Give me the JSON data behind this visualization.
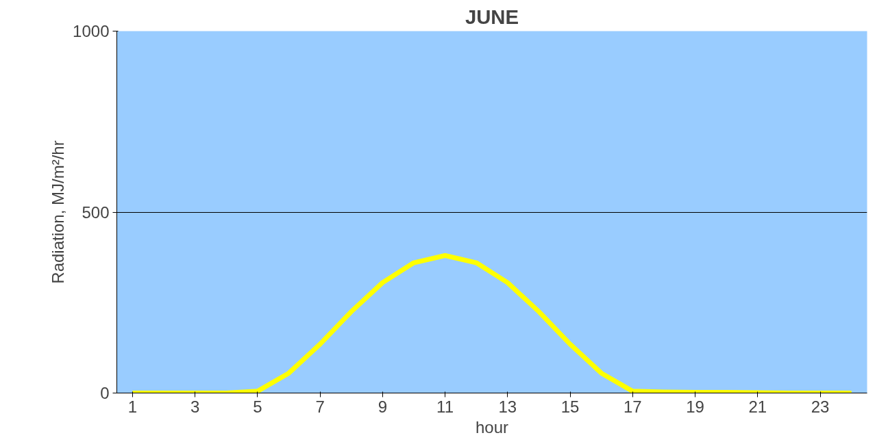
{
  "chart_data": {
    "type": "line",
    "title": "JUNE",
    "xlabel": "hour",
    "ylabel": "Radiation, MJ/m²/hr",
    "x": [
      1,
      2,
      3,
      4,
      5,
      6,
      7,
      8,
      9,
      10,
      11,
      12,
      13,
      14,
      15,
      16,
      17,
      18,
      19,
      20,
      21,
      22,
      23,
      24
    ],
    "series": [
      {
        "color": "#ffff00",
        "values": [
          0,
          0,
          0,
          0,
          5,
          55,
          135,
          225,
          305,
          360,
          380,
          360,
          305,
          225,
          135,
          55,
          5,
          3,
          2,
          2,
          1,
          0,
          0,
          0
        ]
      }
    ],
    "xlim": [
      0.5,
      24.5
    ],
    "xticks": [
      1,
      3,
      5,
      7,
      9,
      11,
      13,
      15,
      17,
      19,
      21,
      23
    ],
    "ylim": [
      0,
      1000
    ],
    "yticks": [
      0,
      500,
      1000
    ],
    "grid": "y",
    "marker": "none",
    "line_style": "solid"
  }
}
